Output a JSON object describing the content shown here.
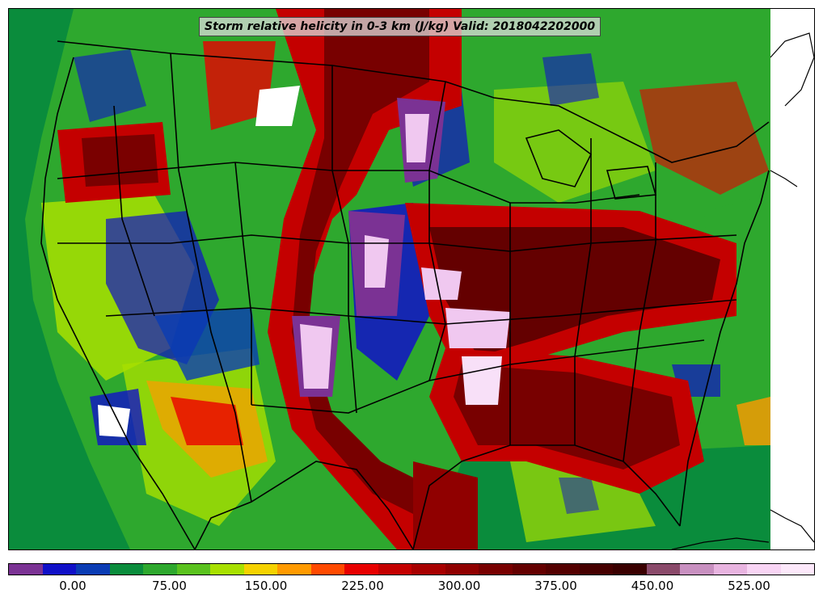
{
  "title": "Storm relative helicity in 0-3 km (J/kg) Valid: 2018042202000",
  "colorbar": {
    "colors": [
      "#7b3294",
      "#1010c8",
      "#0a3cb4",
      "#0a8c3c",
      "#2ea82e",
      "#5ac21e",
      "#a8e000",
      "#f5d200",
      "#ff9a00",
      "#ff4a00",
      "#e80000",
      "#c40000",
      "#a80000",
      "#900000",
      "#780000",
      "#640000",
      "#540000",
      "#460000",
      "#3a0000",
      "#8a4a6a",
      "#c890c0",
      "#e8b4e0",
      "#f8d4f4",
      "#fce8fa"
    ],
    "tick_labels": [
      "0.00",
      "75.00",
      "150.00",
      "225.00",
      "300.00",
      "375.00",
      "450.00",
      "525.00"
    ]
  },
  "map_colors": {
    "ocean_green": "#0a8c3c",
    "land_green": "#5ac21e",
    "yellow_green": "#a8e000",
    "red": "#e80000",
    "dark_red": "#7a0000",
    "blue": "#1010c8",
    "purple": "#7b3294",
    "pink": "#f0c8f0",
    "border": "#000000"
  }
}
